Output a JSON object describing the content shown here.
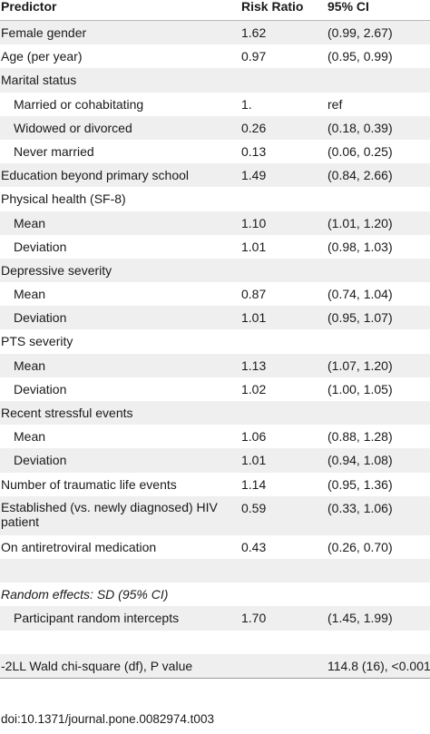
{
  "header": {
    "predictor": "Predictor",
    "risk_ratio": "Risk Ratio",
    "ci": "95% CI"
  },
  "rows": [
    {
      "label": "Female gender",
      "rr": "1.62",
      "ci": "(0.99, 2.67)"
    },
    {
      "label": "Age (per year)",
      "rr": "0.97",
      "ci": "(0.95, 0.99)"
    },
    {
      "label": "Marital status",
      "rr": "",
      "ci": ""
    },
    {
      "label": "Married or cohabitating",
      "rr": "1.",
      "ci": "ref"
    },
    {
      "label": "Widowed or divorced",
      "rr": "0.26",
      "ci": "(0.18, 0.39)"
    },
    {
      "label": "Never married",
      "rr": "0.13",
      "ci": "(0.06, 0.25)"
    },
    {
      "label": "Education beyond primary school",
      "rr": "1.49",
      "ci": "(0.84, 2.66)"
    },
    {
      "label": "Physical health (SF-8)",
      "rr": "",
      "ci": ""
    },
    {
      "label": "Mean",
      "rr": "1.10",
      "ci": "(1.01, 1.20)"
    },
    {
      "label": "Deviation",
      "rr": "1.01",
      "ci": "(0.98, 1.03)"
    },
    {
      "label": "Depressive severity",
      "rr": "",
      "ci": ""
    },
    {
      "label": "Mean",
      "rr": "0.87",
      "ci": "(0.74, 1.04)"
    },
    {
      "label": "Deviation",
      "rr": "1.01",
      "ci": "(0.95, 1.07)"
    },
    {
      "label": "PTS severity",
      "rr": "",
      "ci": ""
    },
    {
      "label": "Mean",
      "rr": "1.13",
      "ci": "(1.07, 1.20)"
    },
    {
      "label": "Deviation",
      "rr": "1.02",
      "ci": "(1.00, 1.05)"
    },
    {
      "label": "Recent stressful events",
      "rr": "",
      "ci": ""
    },
    {
      "label": "Mean",
      "rr": "1.06",
      "ci": "(0.88, 1.28)"
    },
    {
      "label": "Deviation",
      "rr": "1.01",
      "ci": "(0.94, 1.08)"
    },
    {
      "label": "Number of traumatic life events",
      "rr": "1.14",
      "ci": "(0.95, 1.36)"
    },
    {
      "label": "Established (vs. newly diagnosed) HIV patient",
      "rr": "0.59",
      "ci": "(0.33, 1.06)"
    },
    {
      "label": "On antiretroviral medication",
      "rr": "0.43",
      "ci": "(0.26, 0.70)"
    },
    {
      "label": "",
      "rr": "",
      "ci": ""
    },
    {
      "label": "Random effects: SD (95% CI)",
      "rr": "",
      "ci": ""
    },
    {
      "label": "Participant random intercepts",
      "rr": "1.70",
      "ci": "(1.45, 1.99)"
    },
    {
      "label": "",
      "rr": "",
      "ci": ""
    },
    {
      "label": "-2LL Wald chi-square (df), P value",
      "rr": "",
      "ci": "114.8 (16), <0.001"
    }
  ],
  "doi": "doi:10.1371/journal.pone.0082974.t003"
}
